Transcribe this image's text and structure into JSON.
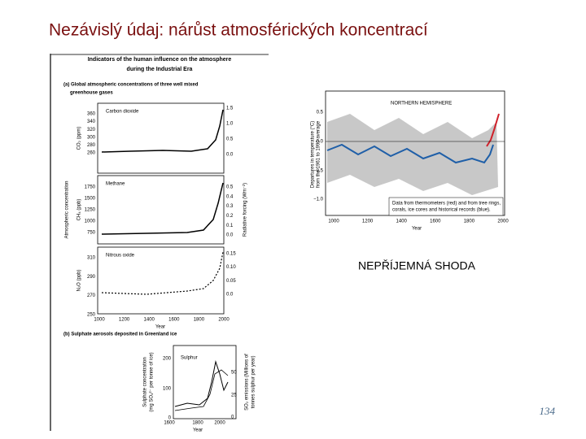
{
  "title": "Nezávislý údaj: nárůst atmosférických koncentrací",
  "left_figure": {
    "title": [
      "Indicators of the human influence on the atmosphere",
      "during the Industrial Era"
    ],
    "panel_a_title": [
      "(a) Global atmospheric concentrations of three well mixed",
      "greenhouse gases"
    ],
    "y_label": "Atmospheric concentration",
    "r_label": "Radiative forcing (Wm⁻²)",
    "panels": [
      {
        "name": "Carbon dioxide",
        "unit": "CO₂ (ppm)",
        "yticks": [
          "360",
          "340",
          "320",
          "300",
          "280",
          "260"
        ],
        "rticks": [
          "1.5",
          "1.0",
          "0.5",
          "0.0"
        ]
      },
      {
        "name": "Methane",
        "unit": "CH₄ (ppb)",
        "yticks": [
          "1750",
          "1500",
          "1250",
          "1000",
          "750"
        ],
        "rticks": [
          "0.5",
          "0.4",
          "0.3",
          "0.2",
          "0.1",
          "0.0"
        ]
      },
      {
        "name": "Nitrous oxide",
        "unit": "N₂O (ppb)",
        "yticks": [
          "310",
          "290",
          "270",
          "250"
        ],
        "rticks": [
          "0.15",
          "0.10",
          "0.05",
          "0.0"
        ]
      }
    ],
    "xticks": [
      "1000",
      "1200",
      "1400",
      "1600",
      "1800",
      "2000"
    ],
    "x_label": "Year",
    "panel_b": {
      "title": "(b) Sulphate aerosols deposited in Greenland ice",
      "name": "Sulphur",
      "y_label": [
        "Sulphate concentration",
        "(mg SO₄²⁻ per tonne of ice)"
      ],
      "r_label": [
        "SO₂ emissions (Millions of",
        "tonnes sulphur per year)"
      ],
      "yticks": [
        "200",
        "100",
        "0"
      ],
      "rticks": [
        "50",
        "25",
        "0"
      ],
      "xticks": [
        "1600",
        "1800",
        "2000"
      ],
      "x_label": "Year"
    }
  },
  "right_figure": {
    "title": "NORTHERN HEMISPHERE",
    "y_label": [
      "Departures in temperature (°C)",
      "from the 1961 to 1990 average"
    ],
    "yticks": [
      "0.5",
      "0.0",
      "−0.5",
      "−1.0"
    ],
    "xticks": [
      "1000",
      "1200",
      "1400",
      "1600",
      "1800",
      "2000"
    ],
    "x_label": "Year",
    "legend": [
      "Data from thermometers (red) and from tree rings,",
      "corals, ice cores and historical records (blue)."
    ]
  },
  "caption": "NEPŘÍJEMNÁ SHODA",
  "page_number": "134"
}
